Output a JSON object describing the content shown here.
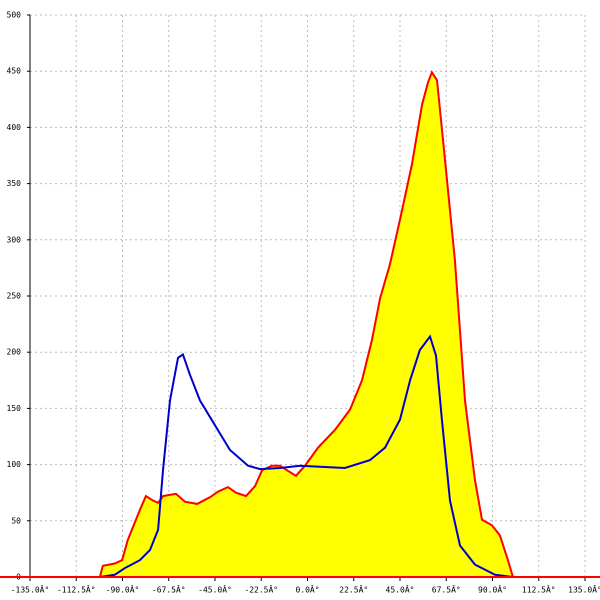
{
  "chart_data": {
    "type": "area",
    "xlim": [
      -135,
      135
    ],
    "ylim": [
      0,
      500
    ],
    "xticks": [
      {
        "value": -135,
        "label": "-135.0Â°"
      },
      {
        "value": -112.5,
        "label": "-112.5Â°"
      },
      {
        "value": -90,
        "label": "-90.0Â°"
      },
      {
        "value": -67.5,
        "label": "-67.5Â°"
      },
      {
        "value": -45,
        "label": "-45.0Â°"
      },
      {
        "value": -22.5,
        "label": "-22.5Â°"
      },
      {
        "value": 0,
        "label": "0.0Â°"
      },
      {
        "value": 22.5,
        "label": "22.5Â°"
      },
      {
        "value": 45,
        "label": "45.0Â°"
      },
      {
        "value": 67.5,
        "label": "67.5Â°"
      },
      {
        "value": 90,
        "label": "90.0Â°"
      },
      {
        "value": 112.5,
        "label": "112.5Â°"
      },
      {
        "value": 135,
        "label": "135.0Â°"
      }
    ],
    "yticks": [
      0,
      50,
      100,
      150,
      200,
      250,
      300,
      350,
      400,
      450,
      500
    ],
    "grid": true,
    "series": [
      {
        "type": "area",
        "color": "#ff0000",
        "fill": "#ffff00",
        "x": [
          -101,
          -99.6,
          -93.8,
          -90.2,
          -87.4,
          -81.5,
          -78.6,
          -75.1,
          -72.7,
          -70.3,
          -64,
          -59.6,
          -53.7,
          -47.4,
          -43.5,
          -38.7,
          -34.8,
          -29.9,
          -25.5,
          -22.1,
          -17.3,
          -13.4,
          -10,
          -5.6,
          -1.2,
          5.1,
          13.4,
          20.7,
          26.5,
          31.4,
          35.3,
          40.1,
          45,
          50.8,
          55.7,
          58.6,
          60.5,
          63,
          66.4,
          71.7,
          76.6,
          81.5,
          84.9,
          89.7,
          93.6,
          97.5,
          99.9
        ],
        "values": [
          0,
          10,
          12,
          15,
          33,
          60,
          72,
          68,
          66,
          72,
          74,
          67,
          65,
          71,
          76,
          80,
          75,
          72,
          81,
          95,
          99,
          99,
          95,
          90,
          99,
          115,
          131,
          149,
          175,
          211,
          248,
          278,
          318,
          367,
          420,
          440,
          449,
          442,
          380,
          282,
          157,
          86,
          51,
          46,
          37,
          15,
          0
        ]
      },
      {
        "type": "line",
        "color": "#0000cc",
        "x": [
          -101,
          -93.8,
          -88.8,
          -81.5,
          -76.6,
          -72.7,
          -70.3,
          -66.9,
          -63,
          -60.6,
          -57.2,
          -52.3,
          -45,
          -37.7,
          -28.9,
          -23.1,
          -13.4,
          -3.6,
          6.1,
          18.2,
          30.4,
          37.7,
          45,
          49.9,
          54.7,
          59.6,
          62.5,
          65.4,
          69.3,
          74.2,
          81.5,
          91.2,
          99.9
        ],
        "values": [
          0,
          2,
          8,
          15,
          24,
          42,
          95,
          157,
          195,
          198,
          180,
          157,
          135,
          113,
          99,
          96,
          97,
          99,
          98,
          97,
          104,
          115,
          140,
          175,
          202,
          214,
          197,
          140,
          68,
          28,
          11,
          2,
          0
        ]
      }
    ]
  }
}
